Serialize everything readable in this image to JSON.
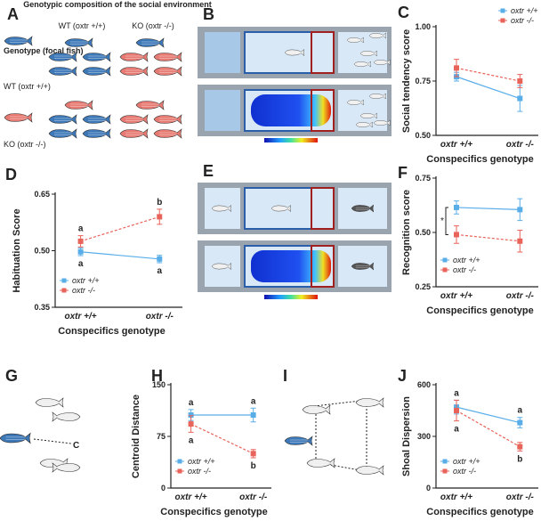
{
  "panels": {
    "labels": [
      "A",
      "B",
      "C",
      "D",
      "E",
      "F",
      "G",
      "H",
      "I",
      "J"
    ]
  },
  "panel_a": {
    "heading": "Genotypic composition of the social environment",
    "columns": [
      "WT (oxtr +/+)",
      "KO (oxtr -/-)"
    ],
    "row_heading": "Genotype (focal fish)",
    "rows": [
      "WT (oxtr +/+)",
      "KO (oxtr -/-)"
    ]
  },
  "panel_g": {
    "label": "C"
  },
  "chart_data": [
    {
      "type": "line",
      "y_label": "Social tendency score",
      "x_label": "Conspecifics genotype",
      "categories": [
        "oxtr +/+",
        "oxtr -/-"
      ],
      "legend": "upper right",
      "ylim": [
        0.5,
        1.0
      ],
      "yticks": [
        {
          "value": 0.5,
          "label": "0.50"
        },
        {
          "value": 0.75,
          "label": "0.75"
        },
        {
          "value": 1.0,
          "label": "1.00"
        }
      ],
      "series": [
        {
          "name": "oxtr +/+",
          "color": "#5aaee8",
          "values": [
            0.77,
            0.67
          ],
          "errors": [
            0.02,
            0.06
          ]
        },
        {
          "name": "oxtr -/-",
          "color": "#e8635a",
          "values": [
            0.81,
            0.75
          ],
          "errors": [
            0.04,
            0.03
          ]
        }
      ]
    },
    {
      "type": "line",
      "y_label": "Habituation Score",
      "x_label": "Conspecifics genotype",
      "categories": [
        "oxtr +/+",
        "oxtr -/-"
      ],
      "legend": "lower left",
      "ylim": [
        0.35,
        0.65
      ],
      "yticks": [
        {
          "value": 0.35,
          "label": "0.35"
        },
        {
          "value": 0.5,
          "label": "0.50"
        },
        {
          "value": 0.65,
          "label": "0.65"
        }
      ],
      "series": [
        {
          "name": "oxtr +/+",
          "color": "#5aaee8",
          "values": [
            0.497,
            0.478
          ],
          "errors": [
            0.01,
            0.01
          ],
          "point_labels": [
            "a",
            "a"
          ]
        },
        {
          "name": "oxtr -/-",
          "color": "#e8635a",
          "values": [
            0.525,
            0.59
          ],
          "errors": [
            0.015,
            0.02
          ],
          "point_labels": [
            "a",
            "b"
          ]
        }
      ]
    },
    {
      "type": "line",
      "y_label": "Recognition score",
      "x_label": "Conspecifics genotype",
      "categories": [
        "oxtr +/+",
        "oxtr -/-"
      ],
      "legend": "lower left",
      "annotation": "*",
      "ylim": [
        0.25,
        0.75
      ],
      "yticks": [
        {
          "value": 0.25,
          "label": "0.25"
        },
        {
          "value": 0.5,
          "label": "0.50"
        },
        {
          "value": 0.75,
          "label": "0.75"
        }
      ],
      "series": [
        {
          "name": "oxtr +/+",
          "color": "#5aaee8",
          "values": [
            0.615,
            0.605
          ],
          "errors": [
            0.03,
            0.05
          ]
        },
        {
          "name": "oxtr -/-",
          "color": "#e8635a",
          "values": [
            0.49,
            0.46
          ],
          "errors": [
            0.04,
            0.05
          ]
        }
      ]
    },
    {
      "type": "line",
      "y_label": "Centroid Distance",
      "x_label": "Conspecifics genotype",
      "categories": [
        "oxtr +/+",
        "oxtr -/-"
      ],
      "legend": "lower left",
      "ylim": [
        0,
        150
      ],
      "yticks": [
        0,
        75,
        150
      ],
      "series": [
        {
          "name": "oxtr +/+",
          "color": "#5aaee8",
          "values": [
            106,
            106
          ],
          "errors": [
            8,
            10
          ],
          "point_labels": [
            "a",
            "a"
          ]
        },
        {
          "name": "oxtr -/-",
          "color": "#e8635a",
          "values": [
            93,
            50
          ],
          "errors": [
            12,
            6
          ],
          "point_labels": [
            "a",
            "b"
          ]
        }
      ]
    },
    {
      "type": "line",
      "y_label": "Shoal Dispersion",
      "x_label": "Conspecifics genotype",
      "categories": [
        "oxtr +/+",
        "oxtr -/-"
      ],
      "legend": "lower left",
      "ylim": [
        0,
        600
      ],
      "yticks": [
        0,
        300,
        600
      ],
      "series": [
        {
          "name": "oxtr +/+",
          "color": "#5aaee8",
          "values": [
            470,
            380
          ],
          "errors": [
            40,
            30
          ],
          "point_labels": [
            "a",
            "a"
          ]
        },
        {
          "name": "oxtr -/-",
          "color": "#e8635a",
          "values": [
            450,
            240
          ],
          "errors": [
            60,
            25
          ],
          "point_labels": [
            "a",
            "b"
          ]
        }
      ]
    }
  ]
}
